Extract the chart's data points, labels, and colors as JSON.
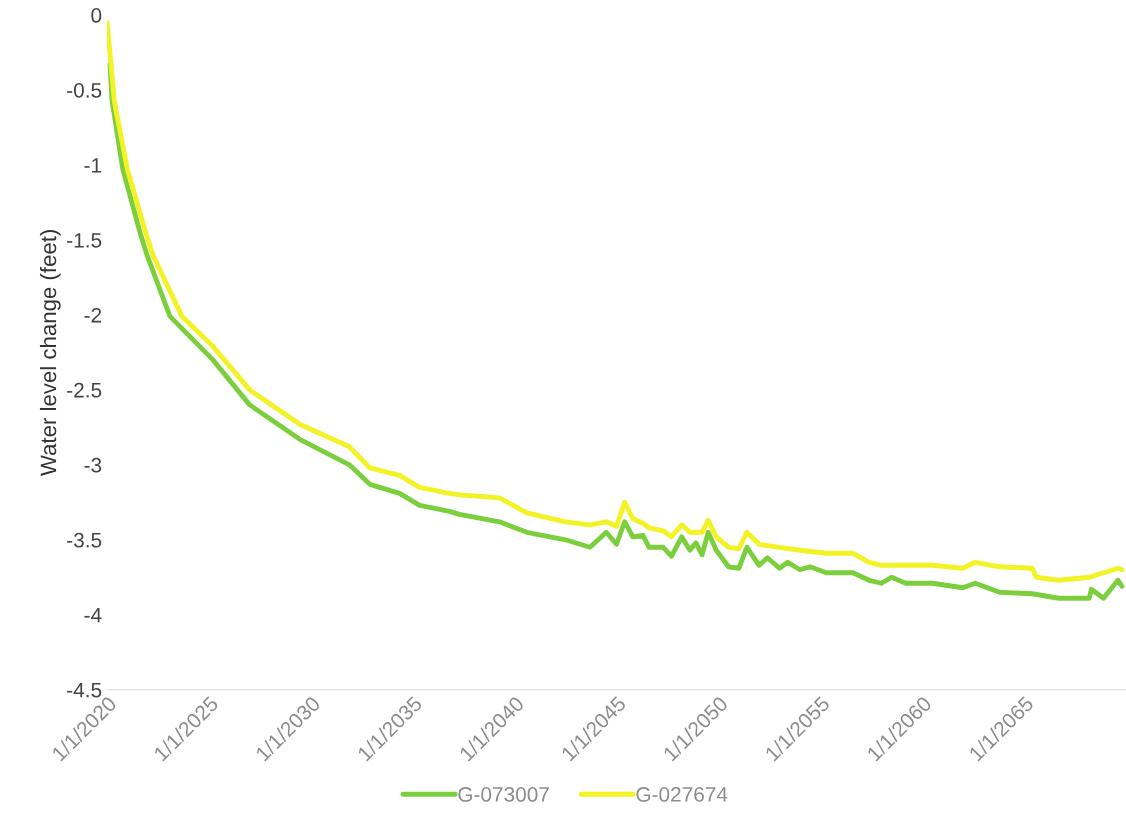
{
  "chart_data": {
    "type": "line",
    "ylabel": "Water level change (feet)",
    "xlim": [
      "2020-01-01",
      "2070-01-01"
    ],
    "ylim": [
      -4.5,
      0
    ],
    "xticks": [
      {
        "value": "2020-01-01",
        "label": "1/1/2020"
      },
      {
        "value": "2025-01-01",
        "label": "1/1/2025"
      },
      {
        "value": "2030-01-01",
        "label": "1/1/2030"
      },
      {
        "value": "2035-01-01",
        "label": "1/1/2035"
      },
      {
        "value": "2040-01-01",
        "label": "1/1/2040"
      },
      {
        "value": "2045-01-01",
        "label": "1/1/2045"
      },
      {
        "value": "2050-01-01",
        "label": "1/1/2050"
      },
      {
        "value": "2055-01-01",
        "label": "1/1/2055"
      },
      {
        "value": "2060-01-01",
        "label": "1/1/2060"
      },
      {
        "value": "2065-01-01",
        "label": "1/1/2065"
      }
    ],
    "yticks": [
      0,
      -0.5,
      -1,
      -1.5,
      -2,
      -2.5,
      -3,
      -3.5,
      -4,
      -4.5
    ],
    "grid": false,
    "legend": "bottom",
    "marker": "none",
    "line_style": "solid",
    "series": [
      {
        "name": "G-073007",
        "color": "#7ccf3c",
        "x": [
          "2020-02-25",
          "2020-04-01",
          "2020-10-12",
          "2021-08-15",
          "2021-12-17",
          "2023-02-03",
          "2025-03-14",
          "2027-01-01",
          "2029-06-18",
          "2031-11-24",
          "2032-11-24",
          "2034-05-12",
          "2035-05-05",
          "2036-10-20",
          "2037-04-20",
          "2039-04-05",
          "2040-08-08",
          "2042-07-02",
          "2043-09-13",
          "2044-07-02",
          "2045-01-01",
          "2045-05-27",
          "2045-10-20",
          "2046-04-20",
          "2046-08-08",
          "2047-04-20",
          "2047-09-13",
          "2048-03-14",
          "2048-08-08",
          "2048-11-24",
          "2049-03-14",
          "2049-07-02",
          "2049-11-24",
          "2050-07-02",
          "2051-01-01",
          "2051-05-27",
          "2052-01-01",
          "2052-05-27",
          "2053-01-01",
          "2053-05-27",
          "2054-01-01",
          "2054-07-02",
          "2055-04-20",
          "2056-08-08",
          "2057-05-27",
          "2058-01-01",
          "2058-07-02",
          "2059-03-14",
          "2060-07-02",
          "2062-01-01",
          "2062-08-08",
          "2063-10-20",
          "2065-05-27",
          "2066-09-13",
          "2068-03-14",
          "2068-04-20",
          "2068-11-24",
          "2069-08-08",
          "2069-10-20"
        ],
        "values": [
          -0.33,
          -0.57,
          -1.03,
          -1.45,
          -1.6,
          -2.01,
          -2.3,
          -2.6,
          -2.83,
          -3.0,
          -3.13,
          -3.19,
          -3.27,
          -3.31,
          -3.33,
          -3.38,
          -3.45,
          -3.5,
          -3.55,
          -3.45,
          -3.53,
          -3.38,
          -3.48,
          -3.47,
          -3.55,
          -3.55,
          -3.61,
          -3.48,
          -3.57,
          -3.52,
          -3.6,
          -3.45,
          -3.57,
          -3.68,
          -3.69,
          -3.55,
          -3.67,
          -3.62,
          -3.69,
          -3.65,
          -3.7,
          -3.68,
          -3.72,
          -3.72,
          -3.77,
          -3.79,
          -3.75,
          -3.79,
          -3.79,
          -3.82,
          -3.79,
          -3.85,
          -3.86,
          -3.89,
          -3.89,
          -3.83,
          -3.89,
          -3.77,
          -3.81
        ]
      },
      {
        "name": "G-027674",
        "color": "#f2f224",
        "x": [
          "2020-01-01",
          "2020-03-14",
          "2020-05-09",
          "2021-01-01",
          "2021-11-24",
          "2022-04-01",
          "2023-09-06",
          "2025-03-14",
          "2027-01-01",
          "2029-06-18",
          "2031-11-24",
          "2032-11-24",
          "2034-05-12",
          "2035-05-05",
          "2036-10-20",
          "2037-04-20",
          "2039-04-05",
          "2040-08-08",
          "2042-07-02",
          "2043-09-13",
          "2044-07-02",
          "2045-01-01",
          "2045-05-27",
          "2045-10-20",
          "2046-04-20",
          "2046-08-08",
          "2047-04-20",
          "2047-09-13",
          "2048-03-14",
          "2048-08-08",
          "2049-03-14",
          "2049-07-02",
          "2049-11-24",
          "2050-07-02",
          "2051-01-01",
          "2051-05-27",
          "2052-01-01",
          "2053-01-01",
          "2054-01-01",
          "2055-04-20",
          "2056-08-08",
          "2057-05-27",
          "2058-01-01",
          "2060-07-02",
          "2062-01-01",
          "2062-08-08",
          "2063-10-20",
          "2065-05-27",
          "2065-08-08",
          "2066-09-13",
          "2068-03-14",
          "2069-08-08",
          "2069-10-20"
        ],
        "values": [
          -0.05,
          -0.33,
          -0.57,
          -1.03,
          -1.45,
          -1.6,
          -2.01,
          -2.21,
          -2.5,
          -2.73,
          -2.88,
          -3.02,
          -3.07,
          -3.15,
          -3.19,
          -3.2,
          -3.22,
          -3.32,
          -3.38,
          -3.4,
          -3.38,
          -3.41,
          -3.25,
          -3.36,
          -3.39,
          -3.42,
          -3.44,
          -3.48,
          -3.4,
          -3.45,
          -3.45,
          -3.37,
          -3.48,
          -3.55,
          -3.56,
          -3.45,
          -3.53,
          -3.55,
          -3.57,
          -3.59,
          -3.59,
          -3.65,
          -3.67,
          -3.67,
          -3.69,
          -3.65,
          -3.68,
          -3.69,
          -3.75,
          -3.77,
          -3.75,
          -3.69,
          -3.7
        ]
      }
    ]
  }
}
